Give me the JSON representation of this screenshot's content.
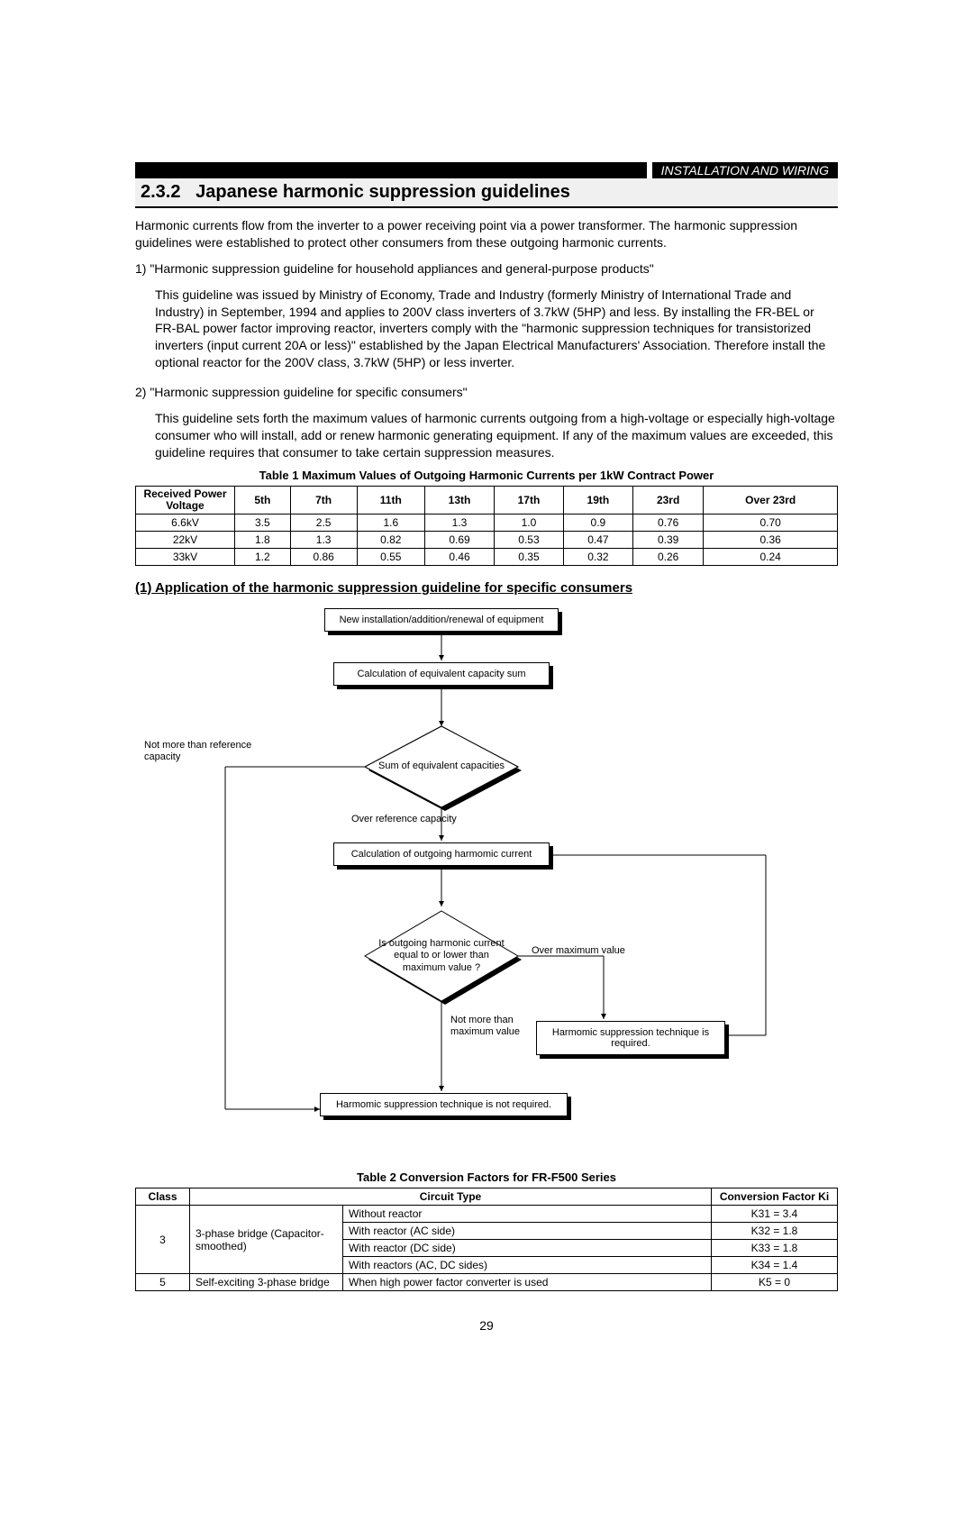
{
  "header": {
    "title": "INSTALLATION AND WIRING"
  },
  "section": {
    "number": "2.3.2",
    "title": "Japanese harmonic suppression guidelines"
  },
  "intro": "Harmonic currents flow from the inverter to a power receiving point via a power transformer. The harmonic suppression guidelines were established to protect other consumers from these outgoing harmonic currents.",
  "item1": {
    "lead": "1) \"Harmonic suppression guideline for household appliances and general-purpose products\"",
    "body": "This guideline was issued by Ministry of Economy, Trade and  Industry (formerly Ministry of International Trade and Industry) in September, 1994 and applies to 200V class inverters of 3.7kW (5HP) and less. By installing the FR-BEL or FR-BAL power factor improving reactor, inverters comply with the \"harmonic suppression techniques for transistorized inverters (input current 20A or less)\" established by the Japan Electrical Manufacturers' Association. Therefore install the optional reactor for the 200V class, 3.7kW (5HP) or less inverter."
  },
  "item2": {
    "lead": "2) \"Harmonic suppression guideline for specific consumers\"",
    "body": "This guideline sets forth the maximum values of harmonic currents outgoing from a high-voltage or especially high-voltage consumer who will install, add or renew harmonic generating equipment. If any of the maximum values are exceeded, this guideline requires that consumer to take certain suppression measures."
  },
  "table1": {
    "caption": "Table 1 Maximum Values of Outgoing Harmonic Currents per 1kW Contract Power",
    "headers": [
      "Received Power Voltage",
      "5th",
      "7th",
      "11th",
      "13th",
      "17th",
      "19th",
      "23rd",
      "Over 23rd"
    ],
    "rows": [
      [
        "6.6kV",
        "3.5",
        "2.5",
        "1.6",
        "1.3",
        "1.0",
        "0.9",
        "0.76",
        "0.70"
      ],
      [
        "22kV",
        "1.8",
        "1.3",
        "0.82",
        "0.69",
        "0.53",
        "0.47",
        "0.39",
        "0.36"
      ],
      [
        "33kV",
        "1.2",
        "0.86",
        "0.55",
        "0.46",
        "0.35",
        "0.32",
        "0.26",
        "0.24"
      ]
    ]
  },
  "subhead": "(1) Application of the harmonic suppression guideline for specific consumers",
  "flow": {
    "n1": "New installation/addition/renewal of equipment",
    "n2": "Calculation of equivalent capacity sum",
    "n3": "Sum of equivalent capacities",
    "n4": "Calculation of outgoing harmomic current",
    "n5": "Is outgoing harmonic current equal to or lower than maximum value ?",
    "n6": "Harmomic suppression technique is not required.",
    "n7": "Harmomic suppression technique is required.",
    "l_notmore": "Not more than reference capacity",
    "l_overref": "Over reference capacity",
    "l_overmax": "Over maximum value",
    "l_notmax": "Not more than maximum value"
  },
  "table2": {
    "caption": "Table 2 Conversion Factors for FR-F500 Series",
    "headers": [
      "Class",
      "Circuit Type",
      "Conversion Factor Ki"
    ],
    "rows": [
      {
        "class": "3",
        "cat": "3-phase bridge (Capacitor-smoothed)",
        "type": "Without reactor",
        "k": "K31 = 3.4"
      },
      {
        "class": "",
        "cat": "",
        "type": "With reactor (AC side)",
        "k": "K32 = 1.8"
      },
      {
        "class": "",
        "cat": "",
        "type": "With reactor (DC side)",
        "k": "K33 = 1.8"
      },
      {
        "class": "",
        "cat": "",
        "type": "With reactors (AC, DC sides)",
        "k": "K34 = 1.4"
      },
      {
        "class": "5",
        "cat": "Self-exciting 3-phase bridge",
        "type": "When high power factor converter is used",
        "k": "K5 = 0"
      }
    ]
  },
  "pagenum": "29",
  "colors": {
    "ink": "#000000",
    "paper": "#ffffff",
    "tint": "#efefef"
  }
}
